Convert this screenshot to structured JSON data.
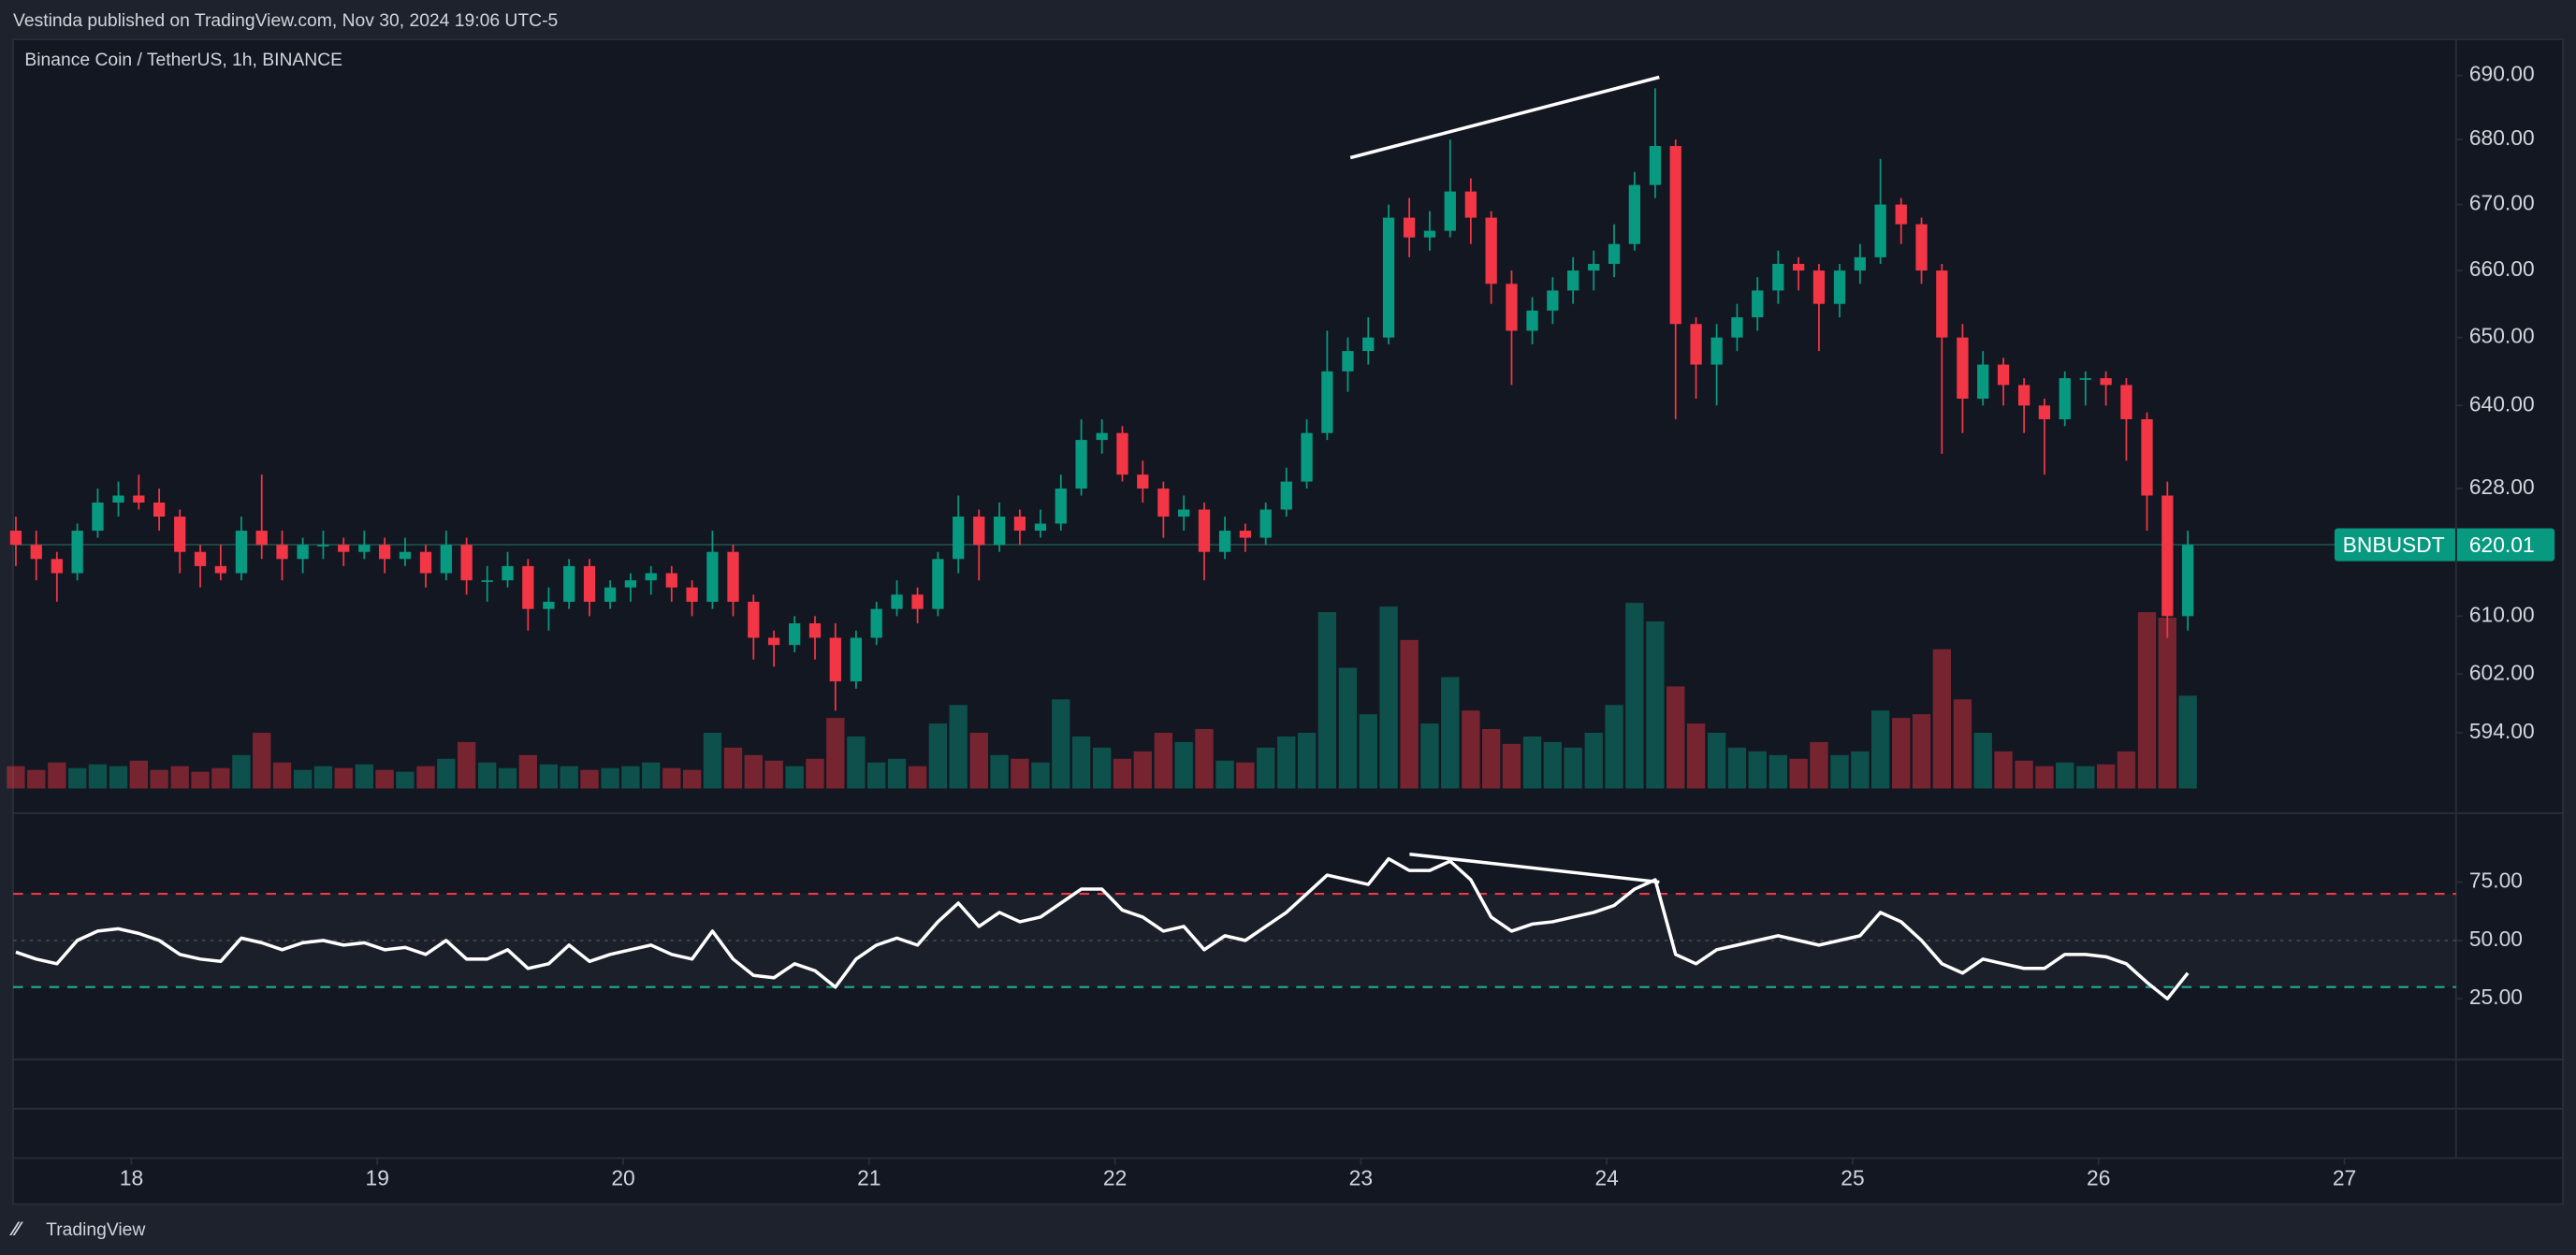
{
  "header": {
    "text": "Vestinda published on TradingView.com, Nov 30, 2024 19:06 UTC-5"
  },
  "footer": {
    "logo": "TradingView"
  },
  "chart_data": {
    "type": "candlestick",
    "title": "Binance Coin / TetherUS, 1h, BINANCE",
    "symbol": "BNBUSDT",
    "up_color": "#089981",
    "down_color": "#f23645",
    "log_scale": true,
    "grid": false,
    "xlim": [
      17.519,
      27.454
    ],
    "xticks": [
      18,
      19,
      20,
      21,
      22,
      23,
      24,
      25,
      26,
      27
    ],
    "ylim": [
      586.5,
      695.7
    ],
    "yticks": [
      {
        "value": 594,
        "label": "594.00"
      },
      {
        "value": 602,
        "label": "602.00"
      },
      {
        "value": 610,
        "label": "610.00"
      },
      {
        "value": 628,
        "label": "628.00"
      },
      {
        "value": 640,
        "label": "640.00"
      },
      {
        "value": 650,
        "label": "650.00"
      },
      {
        "value": 660,
        "label": "660.00"
      },
      {
        "value": 670,
        "label": "670.00"
      },
      {
        "value": 680,
        "label": "680.00"
      },
      {
        "value": 690,
        "label": "690.00"
      }
    ],
    "x": [
      17.53,
      17.613,
      17.697,
      17.78,
      17.863,
      17.947,
      18.03,
      18.113,
      18.197,
      18.28,
      18.363,
      18.447,
      18.53,
      18.613,
      18.697,
      18.78,
      18.863,
      18.947,
      19.03,
      19.113,
      19.197,
      19.28,
      19.363,
      19.447,
      19.53,
      19.613,
      19.697,
      19.78,
      19.863,
      19.947,
      20.03,
      20.113,
      20.197,
      20.28,
      20.363,
      20.447,
      20.53,
      20.613,
      20.697,
      20.78,
      20.863,
      20.947,
      21.03,
      21.113,
      21.197,
      21.28,
      21.363,
      21.447,
      21.53,
      21.613,
      21.697,
      21.78,
      21.863,
      21.947,
      22.03,
      22.113,
      22.197,
      22.28,
      22.363,
      22.447,
      22.53,
      22.613,
      22.697,
      22.78,
      22.863,
      22.947,
      23.03,
      23.113,
      23.197,
      23.28,
      23.363,
      23.447,
      23.53,
      23.613,
      23.697,
      23.78,
      23.863,
      23.947,
      24.03,
      24.113,
      24.197,
      24.28,
      24.363,
      24.447,
      24.53,
      24.613,
      24.697,
      24.78,
      24.863,
      24.947,
      25.03,
      25.113,
      25.197,
      25.28,
      25.363,
      25.447,
      25.53,
      25.613,
      25.697,
      25.78,
      25.863,
      25.947,
      26.03,
      26.113,
      26.197,
      26.28,
      26.363
    ],
    "ohlc": [
      [
        622,
        624,
        617,
        620
      ],
      [
        620,
        622,
        615,
        618
      ],
      [
        618,
        619,
        612,
        616
      ],
      [
        616,
        623,
        615,
        622
      ],
      [
        622,
        628,
        621,
        626
      ],
      [
        626,
        629,
        624,
        627
      ],
      [
        627,
        630,
        625,
        626
      ],
      [
        626,
        628,
        622,
        624
      ],
      [
        624,
        625,
        616,
        619
      ],
      [
        619,
        620,
        614,
        617
      ],
      [
        617,
        620,
        615,
        616
      ],
      [
        616,
        624,
        615,
        622
      ],
      [
        622,
        630,
        618,
        620
      ],
      [
        620,
        622,
        615,
        618
      ],
      [
        618,
        621,
        616,
        620
      ],
      [
        620,
        622,
        618,
        620
      ],
      [
        620,
        621,
        617,
        619
      ],
      [
        619,
        622,
        618,
        620
      ],
      [
        620,
        621,
        616,
        618
      ],
      [
        618,
        621,
        617,
        619
      ],
      [
        619,
        620,
        614,
        616
      ],
      [
        616,
        622,
        615,
        620
      ],
      [
        620,
        621,
        613,
        615
      ],
      [
        615,
        617,
        612,
        615
      ],
      [
        615,
        619,
        614,
        617
      ],
      [
        617,
        618,
        608,
        611
      ],
      [
        611,
        614,
        608,
        612
      ],
      [
        612,
        618,
        611,
        617
      ],
      [
        617,
        618,
        610,
        612
      ],
      [
        612,
        615,
        611,
        614
      ],
      [
        614,
        616,
        612,
        615
      ],
      [
        615,
        617,
        613,
        616
      ],
      [
        616,
        617,
        612,
        614
      ],
      [
        614,
        615,
        610,
        612
      ],
      [
        612,
        622,
        611,
        619
      ],
      [
        619,
        620,
        610,
        612
      ],
      [
        612,
        613,
        604,
        607
      ],
      [
        607,
        608,
        603,
        606
      ],
      [
        606,
        610,
        605,
        609
      ],
      [
        609,
        610,
        604,
        607
      ],
      [
        607,
        609,
        597,
        601
      ],
      [
        601,
        608,
        600,
        607
      ],
      [
        607,
        612,
        606,
        611
      ],
      [
        611,
        615,
        610,
        613
      ],
      [
        613,
        614,
        609,
        611
      ],
      [
        611,
        619,
        610,
        618
      ],
      [
        618,
        627,
        616,
        624
      ],
      [
        624,
        625,
        615,
        620
      ],
      [
        620,
        626,
        619,
        624
      ],
      [
        624,
        625,
        620,
        622
      ],
      [
        622,
        625,
        621,
        623
      ],
      [
        623,
        630,
        622,
        628
      ],
      [
        628,
        638,
        627,
        635
      ],
      [
        635,
        638,
        633,
        636
      ],
      [
        636,
        637,
        629,
        630
      ],
      [
        630,
        632,
        626,
        628
      ],
      [
        628,
        629,
        621,
        624
      ],
      [
        624,
        627,
        622,
        625
      ],
      [
        625,
        626,
        615,
        619
      ],
      [
        619,
        624,
        618,
        622
      ],
      [
        622,
        623,
        619,
        621
      ],
      [
        621,
        626,
        620,
        625
      ],
      [
        625,
        631,
        624,
        629
      ],
      [
        629,
        638,
        628,
        636
      ],
      [
        636,
        651,
        635,
        645
      ],
      [
        645,
        650,
        642,
        648
      ],
      [
        648,
        653,
        646,
        650
      ],
      [
        650,
        670,
        649,
        668
      ],
      [
        668,
        671,
        662,
        665
      ],
      [
        665,
        669,
        663,
        666
      ],
      [
        666,
        680,
        665,
        672
      ],
      [
        672,
        674,
        664,
        668
      ],
      [
        668,
        669,
        655,
        658
      ],
      [
        658,
        660,
        643,
        651
      ],
      [
        651,
        656,
        649,
        654
      ],
      [
        654,
        659,
        652,
        657
      ],
      [
        657,
        662,
        655,
        660
      ],
      [
        660,
        663,
        657,
        661
      ],
      [
        661,
        667,
        659,
        664
      ],
      [
        664,
        675,
        663,
        673
      ],
      [
        673,
        688,
        671,
        679
      ],
      [
        679,
        680,
        638,
        652
      ],
      [
        652,
        653,
        641,
        646
      ],
      [
        646,
        652,
        640,
        650
      ],
      [
        650,
        655,
        648,
        653
      ],
      [
        653,
        659,
        651,
        657
      ],
      [
        657,
        663,
        655,
        661
      ],
      [
        661,
        662,
        657,
        660
      ],
      [
        660,
        661,
        648,
        655
      ],
      [
        655,
        661,
        653,
        660
      ],
      [
        660,
        664,
        658,
        662
      ],
      [
        662,
        677,
        661,
        670
      ],
      [
        670,
        671,
        664,
        667
      ],
      [
        667,
        668,
        658,
        660
      ],
      [
        660,
        661,
        633,
        650
      ],
      [
        650,
        652,
        636,
        641
      ],
      [
        641,
        648,
        640,
        646
      ],
      [
        646,
        647,
        640,
        643
      ],
      [
        643,
        644,
        636,
        640
      ],
      [
        640,
        641,
        630,
        638
      ],
      [
        638,
        645,
        637,
        644
      ],
      [
        644,
        645,
        640,
        644
      ],
      [
        644,
        645,
        640,
        643
      ],
      [
        643,
        644,
        632,
        638
      ],
      [
        638,
        639,
        622,
        627
      ],
      [
        627,
        629,
        607,
        610
      ],
      [
        610,
        622,
        608,
        620.01
      ]
    ],
    "volume": [
      12,
      10,
      14,
      11,
      13,
      12,
      15,
      10,
      12,
      9,
      11,
      18,
      30,
      14,
      10,
      12,
      11,
      13,
      10,
      9,
      12,
      16,
      25,
      14,
      11,
      18,
      13,
      12,
      10,
      11,
      12,
      14,
      11,
      10,
      30,
      22,
      18,
      15,
      12,
      16,
      38,
      28,
      14,
      16,
      12,
      35,
      45,
      30,
      18,
      16,
      14,
      48,
      28,
      22,
      16,
      20,
      30,
      25,
      32,
      15,
      14,
      22,
      28,
      30,
      95,
      65,
      40,
      98,
      80,
      35,
      60,
      42,
      32,
      24,
      28,
      25,
      22,
      30,
      45,
      100,
      90,
      55,
      35,
      30,
      22,
      20,
      18,
      16,
      25,
      18,
      20,
      42,
      38,
      40,
      75,
      48,
      30,
      20,
      15,
      12,
      14,
      12,
      13,
      20,
      95,
      92,
      50
    ],
    "rsi": {
      "ylim": [
        0,
        100
      ],
      "yticks": [
        {
          "value": 25,
          "label": "25.00"
        },
        {
          "value": 50,
          "label": "50.00"
        },
        {
          "value": 75,
          "label": "75.00"
        }
      ],
      "levels": [
        70,
        30
      ],
      "values": [
        45,
        42,
        40,
        50,
        54,
        55,
        53,
        50,
        44,
        42,
        41,
        51,
        49,
        46,
        49,
        50,
        48,
        49,
        46,
        47,
        44,
        50,
        42,
        42,
        46,
        38,
        40,
        48,
        41,
        44,
        46,
        48,
        44,
        42,
        54,
        42,
        35,
        34,
        40,
        37,
        30,
        42,
        48,
        51,
        48,
        58,
        66,
        56,
        62,
        58,
        60,
        66,
        72,
        72,
        63,
        60,
        54,
        56,
        46,
        52,
        50,
        56,
        62,
        70,
        78,
        76,
        74,
        85,
        80,
        80,
        84,
        76,
        60,
        54,
        57,
        58,
        60,
        62,
        65,
        72,
        76,
        44,
        40,
        46,
        48,
        50,
        52,
        50,
        48,
        50,
        52,
        62,
        58,
        50,
        40,
        36,
        42,
        40,
        38,
        38,
        44,
        44,
        43,
        40,
        32,
        25,
        36
      ]
    }
  }
}
